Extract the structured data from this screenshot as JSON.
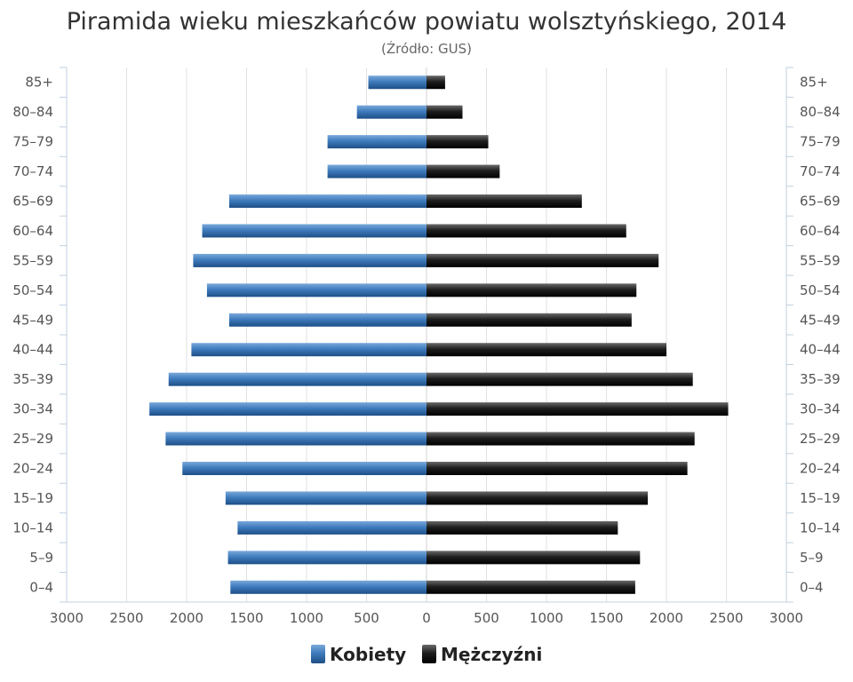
{
  "chart_data": {
    "type": "bar",
    "orientation": "horizontal-population-pyramid",
    "title": "Piramida wieku mieszkańców powiatu wolsztyńskiego, 2014",
    "subtitle": "(Źródło: GUS)",
    "categories": [
      "0–4",
      "5–9",
      "10–14",
      "15–19",
      "20–24",
      "25–29",
      "30–34",
      "35–39",
      "40–44",
      "45–49",
      "50–54",
      "55–59",
      "60–64",
      "65–69",
      "70–74",
      "75–79",
      "80–84",
      "85+"
    ],
    "series": [
      {
        "name": "Kobiety",
        "color": "#3a74b0",
        "side": "left",
        "values": [
          1635,
          1655,
          1575,
          1675,
          2035,
          2175,
          2310,
          2150,
          1960,
          1645,
          1830,
          1945,
          1870,
          1645,
          825,
          825,
          580,
          485
        ]
      },
      {
        "name": "Mężczyźni",
        "color": "#1c1c1c",
        "side": "right",
        "values": [
          1740,
          1780,
          1595,
          1845,
          2175,
          2235,
          2515,
          2220,
          2000,
          1710,
          1750,
          1935,
          1665,
          1295,
          610,
          515,
          300,
          155
        ]
      }
    ],
    "x_ticks": [
      "3000",
      "2500",
      "2000",
      "1500",
      "1000",
      "500",
      "0",
      "500",
      "1000",
      "1500",
      "2000",
      "2500",
      "3000"
    ],
    "xlim": [
      -3000,
      3000
    ],
    "grid": true,
    "legend_position": "bottom-center"
  }
}
